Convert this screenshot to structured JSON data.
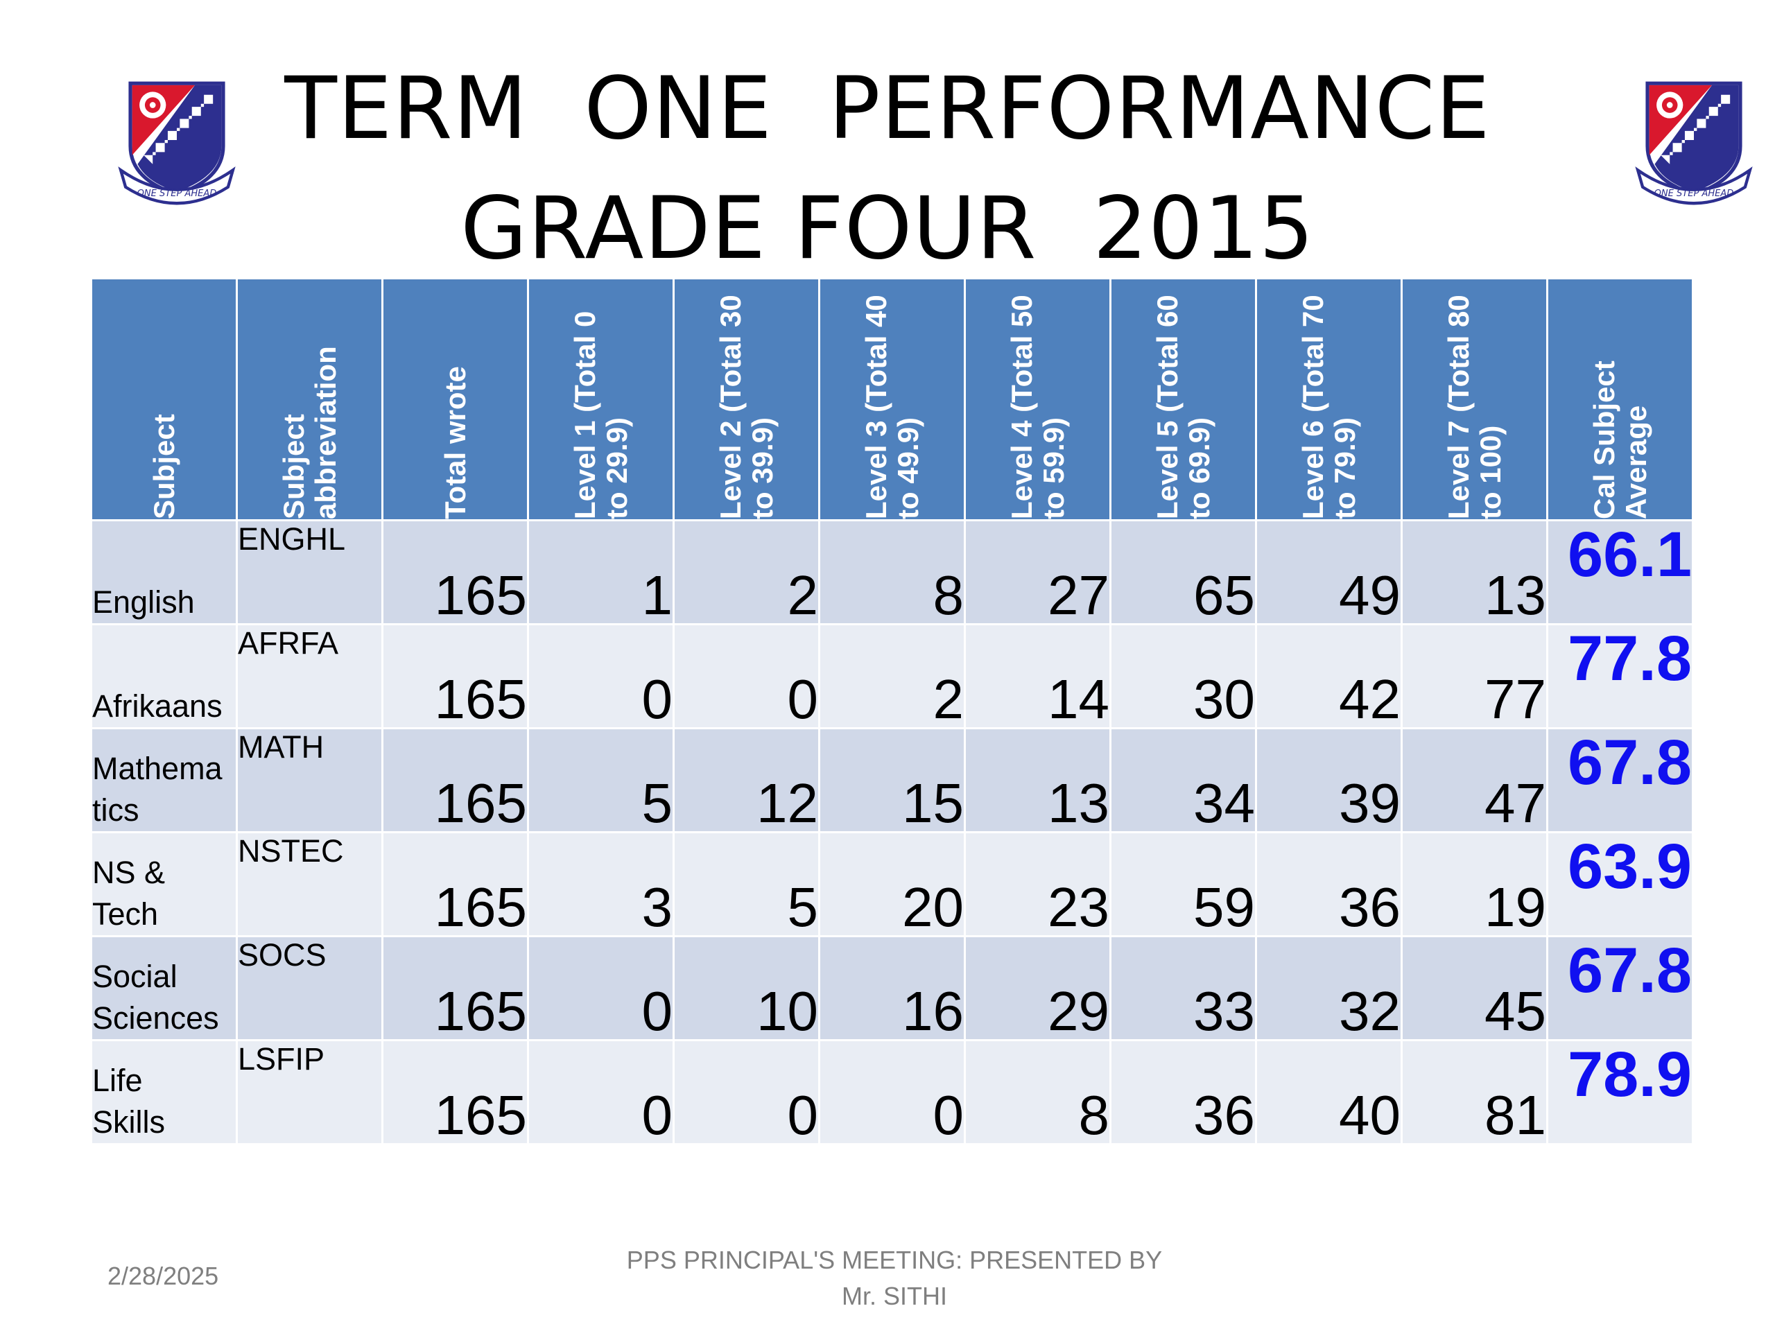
{
  "title": {
    "line1": "TERM  ONE  PERFORMANCE",
    "line2": "GRADE FOUR  2015"
  },
  "crest": {
    "icon": "school-crest-icon",
    "motto": "ONE STEP AHEAD"
  },
  "table": {
    "headers": [
      "Subject",
      "Subject\nabbreviation",
      "Total wrote",
      "Level 1 (Total  0\nto 29.9)",
      "Level 2 (Total 30\nto 39.9)",
      "Level 3 (Total  40\nto 49.9)",
      "Level 4 (Total 50\nto 59.9)",
      "Level 5 (Total  60\nto 69.9)",
      "Level 6 (Total 70\nto 79.9)",
      "Level 7 (Total  80\nto 100)",
      "Cal Subject\nAverage"
    ],
    "rows": [
      {
        "subject": "English",
        "abbr": "ENGHL",
        "total": "165",
        "levels": [
          "1",
          "2",
          "8",
          "27",
          "65",
          "49",
          "13"
        ],
        "average": "66.1"
      },
      {
        "subject": "Afrikaans",
        "abbr": "AFRFA",
        "total": "165",
        "levels": [
          "0",
          "0",
          "2",
          "14",
          "30",
          "42",
          "77"
        ],
        "average": "77.8"
      },
      {
        "subject": "Mathema\ntics",
        "abbr": "MATH",
        "total": "165",
        "levels": [
          "5",
          "12",
          "15",
          "13",
          "34",
          "39",
          "47"
        ],
        "average": "67.8"
      },
      {
        "subject": "NS &\nTech",
        "abbr": "NSTEC",
        "total": "165",
        "levels": [
          "3",
          "5",
          "20",
          "23",
          "59",
          "36",
          "19"
        ],
        "average": "63.9"
      },
      {
        "subject": "Social\nSciences",
        "abbr": "SOCS",
        "total": "165",
        "levels": [
          "0",
          "10",
          "16",
          "29",
          "33",
          "32",
          "45"
        ],
        "average": "67.8"
      },
      {
        "subject": "Life\nSkills",
        "abbr": "LSFIP",
        "total": "165",
        "levels": [
          "0",
          "0",
          "0",
          "8",
          "36",
          "40",
          "81"
        ],
        "average": "78.9"
      }
    ]
  },
  "footer": {
    "date": "2/28/2025",
    "text": "PPS  PRINCIPAL'S MEETING: PRESENTED  BY\nMr. SITHI"
  },
  "colors": {
    "header_bg": "#4f81bd",
    "row_dark": "#d0d8e8",
    "row_light": "#e9edf4",
    "average_text": "#1010f0",
    "crest_red": "#d9182d",
    "crest_navy": "#2d2f8f"
  }
}
